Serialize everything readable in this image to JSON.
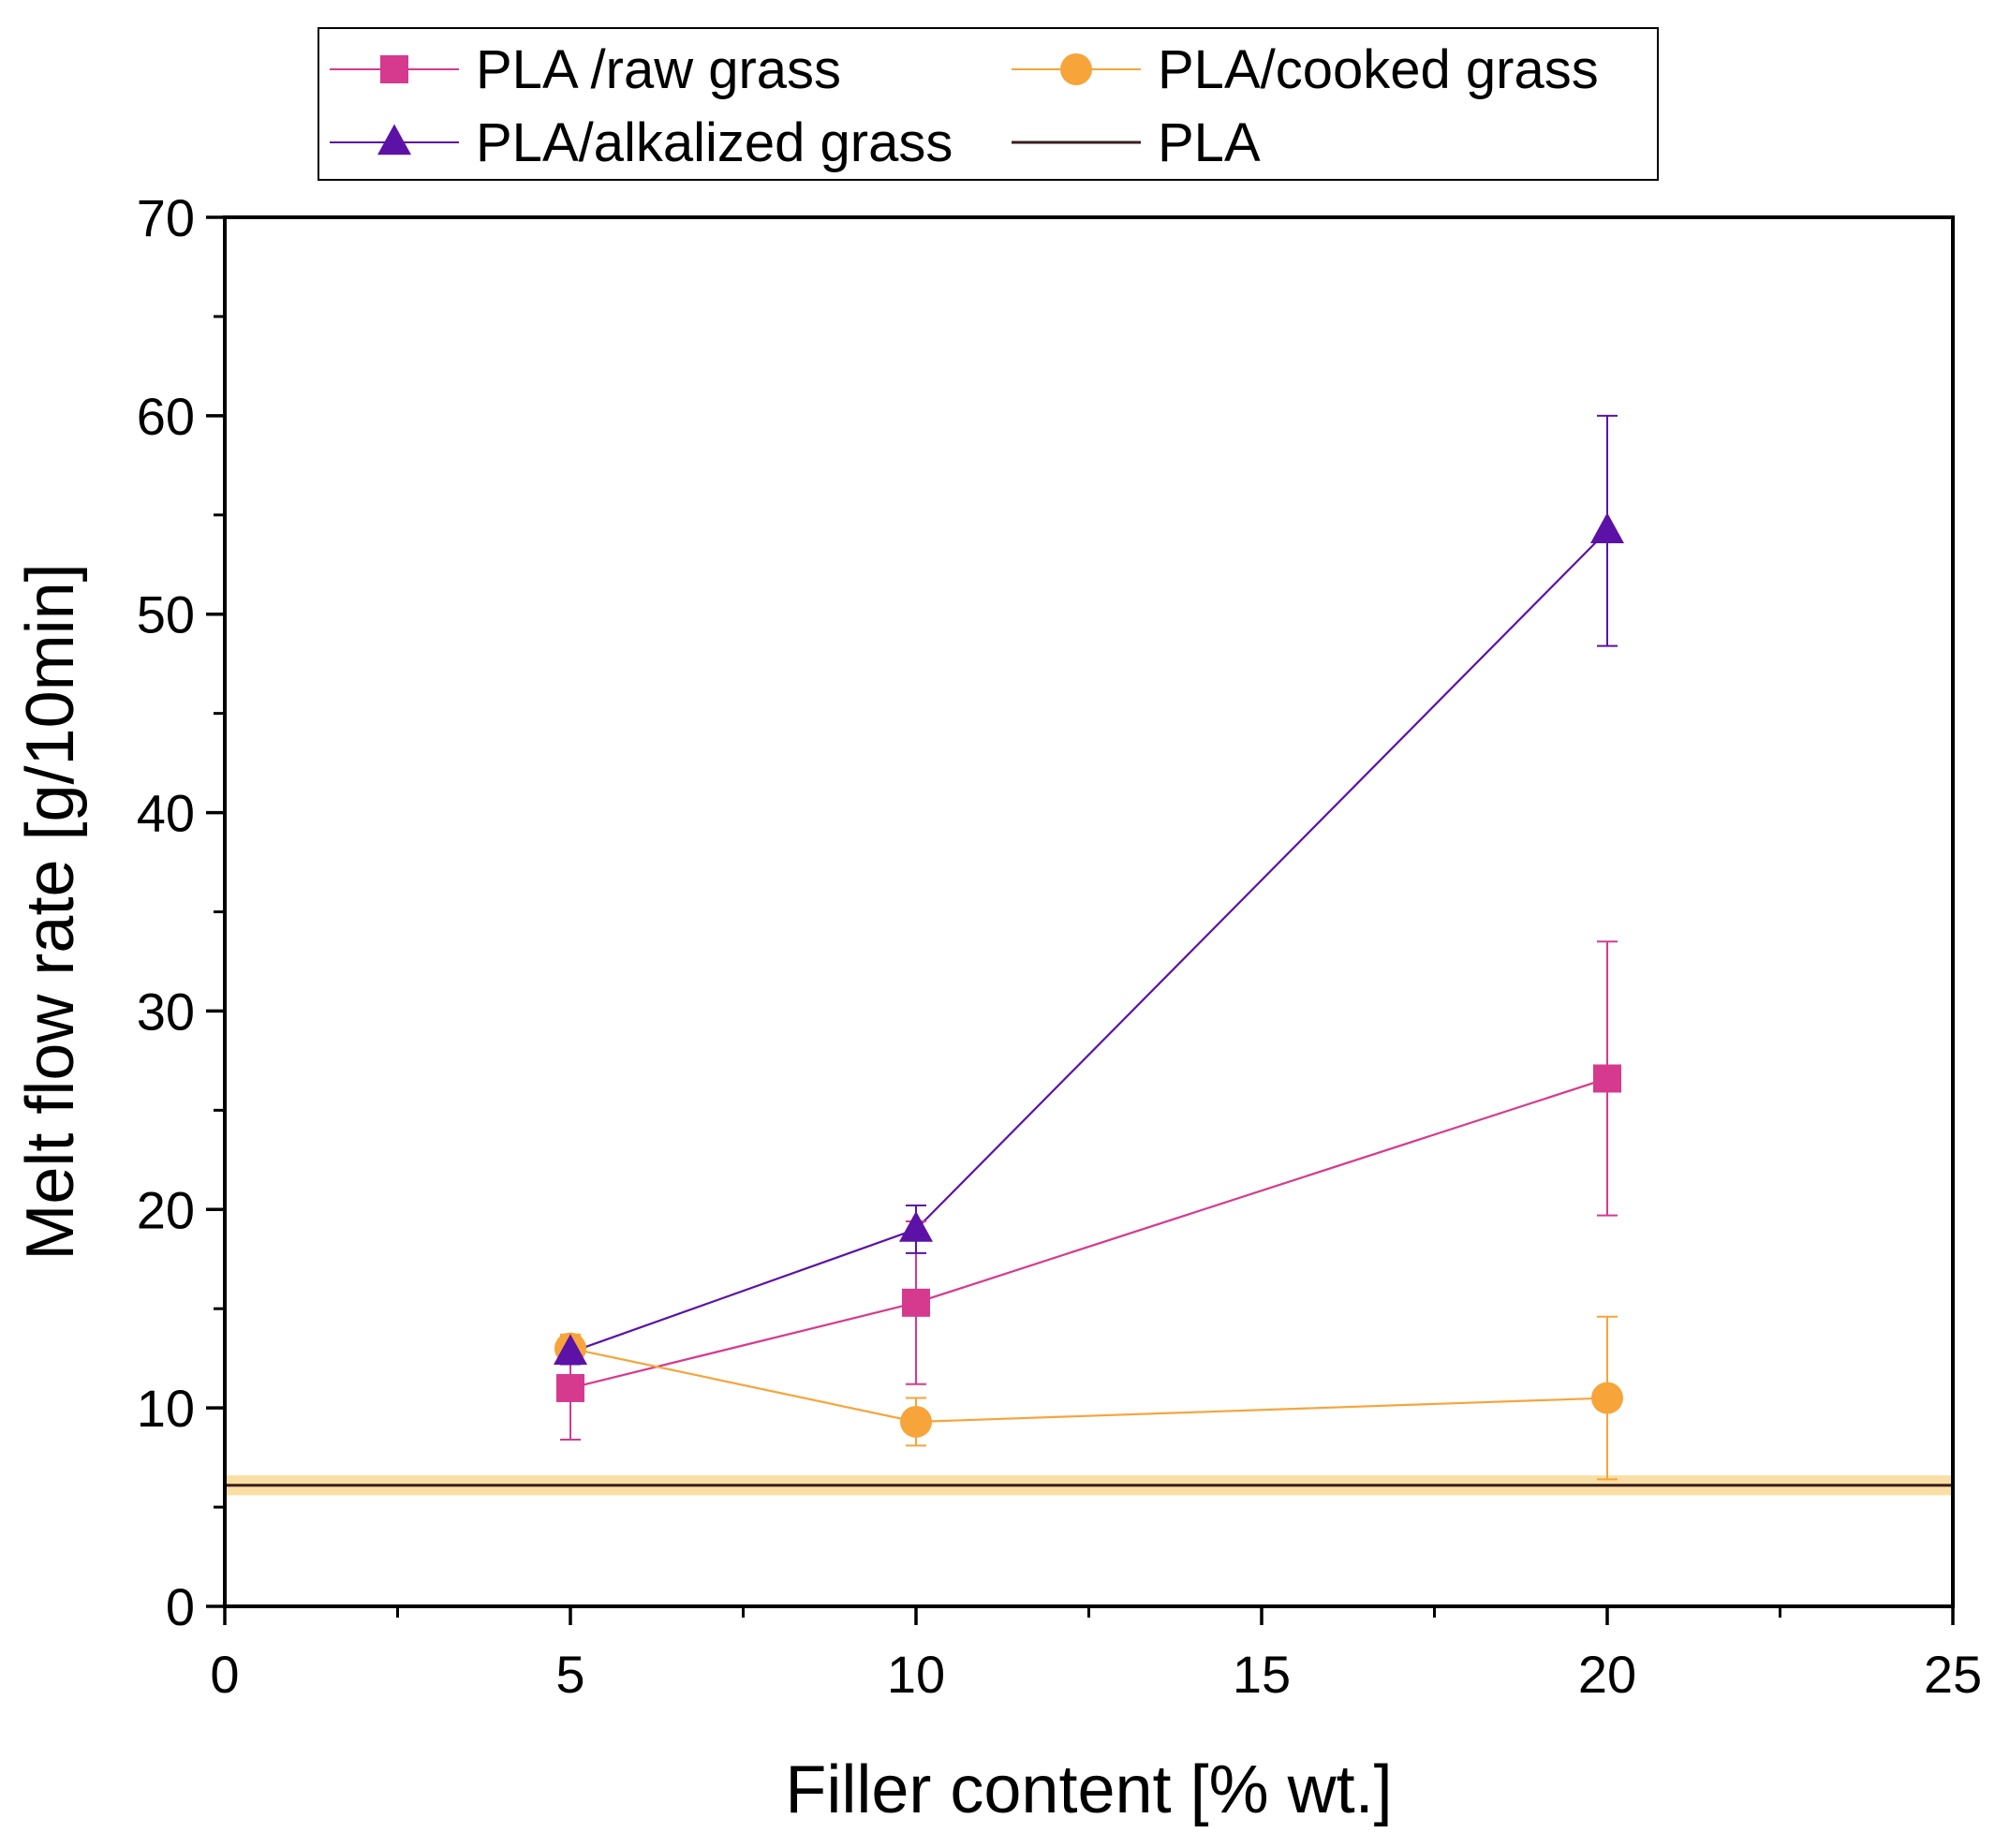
{
  "chart_data": {
    "type": "line",
    "title": "",
    "xlabel": "Filler content [% wt.]",
    "ylabel": "Melt flow rate [g/10min]",
    "xlim": [
      0,
      25
    ],
    "ylim": [
      0,
      70
    ],
    "x_major_ticks": [
      0,
      5,
      10,
      15,
      20,
      25
    ],
    "x_minor_ticks": [
      2.5,
      7.5,
      12.5,
      17.5,
      22.5
    ],
    "y_major_ticks": [
      0,
      10,
      20,
      30,
      40,
      50,
      60,
      70
    ],
    "y_minor_ticks": [
      5,
      15,
      25,
      35,
      45,
      55,
      65
    ],
    "grid": false,
    "legend_position": "top",
    "series": [
      {
        "name": "PLA /raw grass",
        "marker": "square",
        "color": "#d63a8e",
        "x": [
          5,
          10,
          20
        ],
        "y": [
          11.0,
          15.3,
          26.6
        ],
        "error": [
          2.6,
          4.1,
          6.9
        ]
      },
      {
        "name": "PLA/cooked grass",
        "marker": "circle",
        "color": "#f7a43b",
        "x": [
          5,
          10,
          20
        ],
        "y": [
          13.0,
          9.3,
          10.5
        ],
        "error": [
          0.7,
          1.2,
          4.1
        ]
      },
      {
        "name": "PLA/alkalized grass",
        "marker": "triangle",
        "color": "#5c12a6",
        "x": [
          5,
          10,
          20
        ],
        "y": [
          12.8,
          19.0,
          54.2
        ],
        "error": [
          0.6,
          1.2,
          5.8
        ]
      },
      {
        "name": "PLA",
        "marker": "none",
        "color": "#3a1e1e",
        "band_color": "#f9dfa3",
        "x": [
          0,
          25
        ],
        "y": [
          6.1,
          6.1
        ],
        "error": [
          0.5,
          0.5
        ]
      }
    ]
  }
}
